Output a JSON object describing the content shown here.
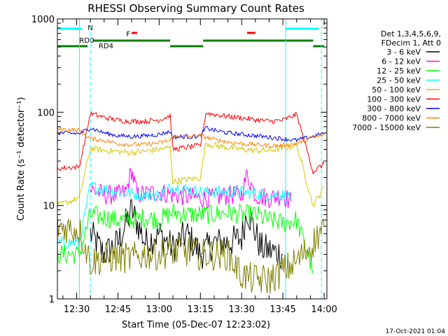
{
  "chart_data": {
    "type": "line",
    "title": "RHESSI Observing Summary Count Rates",
    "xlabel": "Start Time (05-Dec-07 12:23:02)",
    "ylabel": "Count Rate (s⁻¹ detector⁻¹)",
    "y_scale": "log",
    "ylim": [
      1,
      1000
    ],
    "y_ticks": [
      "1",
      "10",
      "100",
      "1000"
    ],
    "xlim": [
      "12:23",
      "14:01"
    ],
    "x_ticks": [
      "12:30",
      "12:45",
      "13:00",
      "13:15",
      "13:30",
      "13:45",
      "14:00"
    ],
    "footer": "17-Oct-2021 01:04",
    "legend": {
      "placement": "right",
      "header": [
        "Det 1,3,4,5,6,9,",
        "FDecim 1, Att 0"
      ]
    },
    "flags": {
      "N": {
        "label": "N",
        "color": "#00ffff",
        "segments": [
          [
            "12:23",
            "12:32"
          ],
          [
            "13:46",
            "13:58"
          ]
        ]
      },
      "F": {
        "label": "F",
        "color": "#ff0000",
        "segments": [
          [
            "12:50",
            "12:52"
          ],
          [
            "13:32",
            "13:35"
          ]
        ]
      },
      "RD0": {
        "label": "RD0",
        "color": "#008000",
        "segments": [
          [
            "12:36",
            "13:04"
          ],
          [
            "13:16",
            "13:56"
          ]
        ]
      },
      "RD4": {
        "label": "RD4",
        "color": "#008000",
        "segments": [
          [
            "12:23",
            "12:34"
          ],
          [
            "13:04",
            "13:16"
          ],
          [
            "13:56",
            "14:00"
          ]
        ]
      }
    },
    "markers": {
      "solid": [
        "12:31",
        "13:46"
      ],
      "dashed": [
        "12:35",
        "13:59"
      ]
    },
    "series": [
      {
        "name": "3 - 6 keV",
        "color": "#000000",
        "points": [
          [
            "12:35",
            5
          ],
          [
            "12:40",
            3
          ],
          [
            "12:45",
            4
          ],
          [
            "12:50",
            9
          ],
          [
            "12:55",
            4
          ],
          [
            "13:00",
            5
          ],
          [
            "13:05",
            3.5
          ],
          [
            "13:10",
            5
          ],
          [
            "13:15",
            3
          ],
          [
            "13:20",
            4
          ],
          [
            "13:25",
            4
          ],
          [
            "13:30",
            4.5
          ],
          [
            "13:32",
            9
          ],
          [
            "13:37",
            3.5
          ],
          [
            "13:45",
            3
          ]
        ]
      },
      {
        "name": "6 - 12 keV",
        "color": "#ff00ff",
        "points": [
          [
            "12:35",
            15
          ],
          [
            "12:40",
            13
          ],
          [
            "12:45",
            13
          ],
          [
            "12:48",
            14
          ],
          [
            "12:50",
            24
          ],
          [
            "12:52",
            13
          ],
          [
            "13:00",
            14
          ],
          [
            "13:05",
            13
          ],
          [
            "13:10",
            12.5
          ],
          [
            "13:15",
            12
          ],
          [
            "13:20",
            12
          ],
          [
            "13:25",
            13
          ],
          [
            "13:30",
            13
          ],
          [
            "13:32",
            22
          ],
          [
            "13:35",
            13
          ],
          [
            "13:40",
            12
          ],
          [
            "13:45",
            13
          ],
          [
            "13:48",
            11
          ]
        ]
      },
      {
        "name": "12 - 25 keV",
        "color": "#00ff00",
        "points": [
          [
            "12:23",
            3
          ],
          [
            "12:31",
            3
          ],
          [
            "12:35",
            8
          ],
          [
            "12:40",
            7.5
          ],
          [
            "12:45",
            7
          ],
          [
            "12:50",
            7
          ],
          [
            "12:55",
            7.5
          ],
          [
            "13:00",
            7
          ],
          [
            "13:05",
            8.5
          ],
          [
            "13:10",
            8
          ],
          [
            "13:15",
            8
          ],
          [
            "13:20",
            8
          ],
          [
            "13:25",
            8.5
          ],
          [
            "13:30",
            8
          ],
          [
            "13:35",
            8
          ],
          [
            "13:40",
            7
          ],
          [
            "13:45",
            6.5
          ],
          [
            "13:50",
            7
          ],
          [
            "13:56",
            2
          ]
        ]
      },
      {
        "name": "25 - 50 keV",
        "color": "#00ffff",
        "points": [
          [
            "12:23",
            4
          ],
          [
            "12:31",
            4
          ],
          [
            "12:35",
            16
          ],
          [
            "12:40",
            15
          ],
          [
            "12:45",
            14
          ],
          [
            "12:50",
            13.5
          ],
          [
            "12:55",
            13
          ],
          [
            "13:00",
            13
          ],
          [
            "13:05",
            16
          ],
          [
            "13:10",
            15
          ],
          [
            "13:15",
            14
          ],
          [
            "13:20",
            14
          ],
          [
            "13:25",
            14
          ],
          [
            "13:30",
            14
          ],
          [
            "13:35",
            13.5
          ],
          [
            "13:40",
            13
          ],
          [
            "13:45",
            13
          ],
          [
            "13:48",
            12
          ]
        ]
      },
      {
        "name": "50 - 100 keV",
        "color": "#d4c400",
        "points": [
          [
            "12:23",
            10
          ],
          [
            "12:31",
            12
          ],
          [
            "12:35",
            41
          ],
          [
            "12:40",
            39
          ],
          [
            "12:45",
            38
          ],
          [
            "12:50",
            37
          ],
          [
            "12:55",
            38
          ],
          [
            "13:00",
            40
          ],
          [
            "13:04",
            42
          ],
          [
            "13:05",
            18
          ],
          [
            "13:10",
            19
          ],
          [
            "13:15",
            20
          ],
          [
            "13:17",
            47
          ],
          [
            "13:20",
            44
          ],
          [
            "13:25",
            42
          ],
          [
            "13:30",
            40
          ],
          [
            "13:35",
            39
          ],
          [
            "13:40",
            39
          ],
          [
            "13:45",
            41
          ],
          [
            "13:50",
            45
          ],
          [
            "13:56",
            10
          ],
          [
            "14:00",
            16
          ]
        ]
      },
      {
        "name": "100 - 300 keV",
        "color": "#ff0000",
        "points": [
          [
            "12:23",
            25
          ],
          [
            "12:31",
            26
          ],
          [
            "12:35",
            97
          ],
          [
            "12:40",
            88
          ],
          [
            "12:45",
            82
          ],
          [
            "12:50",
            80
          ],
          [
            "12:55",
            80
          ],
          [
            "13:00",
            83
          ],
          [
            "13:04",
            92
          ],
          [
            "13:05",
            40
          ],
          [
            "13:10",
            42
          ],
          [
            "13:15",
            44
          ],
          [
            "13:17",
            98
          ],
          [
            "13:20",
            95
          ],
          [
            "13:25",
            90
          ],
          [
            "13:30",
            87
          ],
          [
            "13:35",
            83
          ],
          [
            "13:40",
            80
          ],
          [
            "13:45",
            82
          ],
          [
            "13:50",
            95
          ],
          [
            "13:56",
            23
          ],
          [
            "14:00",
            28
          ]
        ]
      },
      {
        "name": "300 - 800 keV",
        "color": "#0000ff",
        "points": [
          [
            "12:23",
            60
          ],
          [
            "12:31",
            59
          ],
          [
            "12:35",
            68
          ],
          [
            "12:40",
            60
          ],
          [
            "12:45",
            56
          ],
          [
            "12:50",
            55
          ],
          [
            "12:55",
            56
          ],
          [
            "13:00",
            58
          ],
          [
            "13:04",
            62
          ],
          [
            "13:05",
            54
          ],
          [
            "13:10",
            55
          ],
          [
            "13:15",
            55
          ],
          [
            "13:17",
            68
          ],
          [
            "13:20",
            64
          ],
          [
            "13:25",
            60
          ],
          [
            "13:30",
            58
          ],
          [
            "13:35",
            56
          ],
          [
            "13:40",
            54
          ],
          [
            "13:45",
            52
          ],
          [
            "13:50",
            50
          ],
          [
            "13:56",
            55
          ],
          [
            "14:00",
            60
          ]
        ]
      },
      {
        "name": "800 - 7000 keV",
        "color": "#ff8000",
        "points": [
          [
            "12:23",
            66
          ],
          [
            "12:31",
            64
          ],
          [
            "12:35",
            52
          ],
          [
            "12:40",
            50
          ],
          [
            "12:45",
            46
          ],
          [
            "12:50",
            45
          ],
          [
            "12:55",
            45
          ],
          [
            "13:00",
            47
          ],
          [
            "13:04",
            50
          ],
          [
            "13:05",
            55
          ],
          [
            "13:10",
            55
          ],
          [
            "13:15",
            56
          ],
          [
            "13:17",
            54
          ],
          [
            "13:20",
            51
          ],
          [
            "13:25",
            48
          ],
          [
            "13:30",
            46
          ],
          [
            "13:35",
            45
          ],
          [
            "13:40",
            44
          ],
          [
            "13:45",
            44
          ],
          [
            "13:50",
            46
          ],
          [
            "13:56",
            54
          ],
          [
            "14:00",
            57
          ]
        ]
      },
      {
        "name": "7000 - 15000 keV",
        "color": "#808000",
        "points": [
          [
            "12:23",
            6
          ],
          [
            "12:31",
            5.5
          ],
          [
            "12:35",
            2.5
          ],
          [
            "12:40",
            2.7
          ],
          [
            "12:45",
            2.8
          ],
          [
            "12:50",
            2.7
          ],
          [
            "12:55",
            3
          ],
          [
            "13:00",
            3
          ],
          [
            "13:05",
            3.3
          ],
          [
            "13:10",
            3.2
          ],
          [
            "13:15",
            3
          ],
          [
            "13:20",
            3
          ],
          [
            "13:25",
            3
          ],
          [
            "13:30",
            1.8
          ],
          [
            "13:35",
            1.6
          ],
          [
            "13:40",
            1.6
          ],
          [
            "13:45",
            2
          ],
          [
            "13:50",
            2.5
          ],
          [
            "13:56",
            4
          ],
          [
            "14:00",
            6
          ]
        ]
      }
    ]
  }
}
